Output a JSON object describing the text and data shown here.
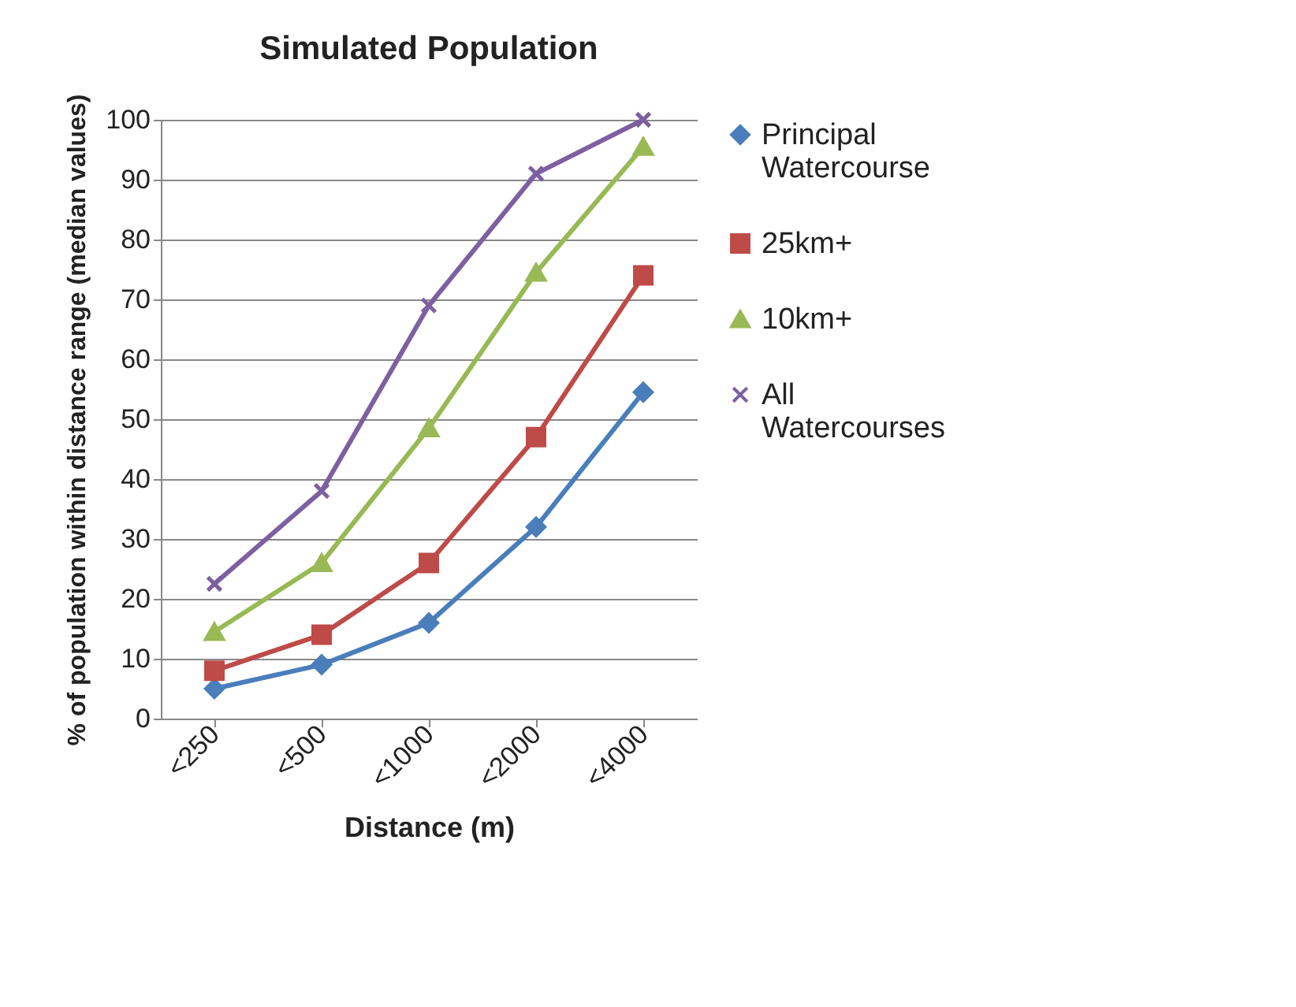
{
  "chart_data": {
    "type": "line",
    "title": "Simulated Population",
    "xlabel": "Distance (m)",
    "ylabel": "% of population within distance range (median values)",
    "categories": [
      "<250",
      "<500",
      "<1000",
      "<2000",
      "<4000"
    ],
    "series": [
      {
        "name": "Principal Watercourse",
        "color": "#4a7ebb",
        "marker": "diamond",
        "values": [
          5,
          9,
          16,
          32,
          54.5
        ]
      },
      {
        "name": "25km+",
        "color": "#be4b48",
        "marker": "square",
        "values": [
          8,
          14,
          26,
          47,
          74
        ]
      },
      {
        "name": "10km+",
        "color": "#98b954",
        "marker": "triangle",
        "values": [
          14.5,
          26,
          48.5,
          74.5,
          95.5
        ]
      },
      {
        "name": "All Watercourses",
        "color": "#7d60a0",
        "marker": "cross",
        "values": [
          22.5,
          38,
          69,
          91,
          100
        ]
      }
    ],
    "ylim": [
      0,
      100
    ],
    "yticks": [
      0,
      10,
      20,
      30,
      40,
      50,
      60,
      70,
      80,
      90,
      100
    ],
    "grid": "y",
    "legend": "right"
  }
}
